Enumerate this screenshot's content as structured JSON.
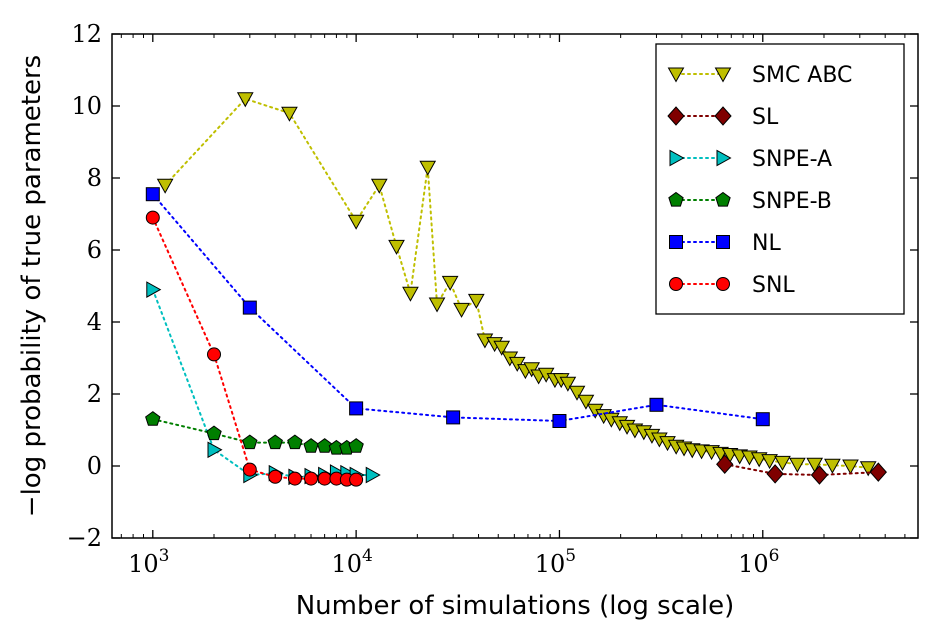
{
  "chart_data": {
    "type": "line",
    "title": "",
    "xlabel": "Number of simulations (log scale)",
    "ylabel": "−log probability of true parameters",
    "xscale": "log",
    "xlim": [
      630,
      5800000
    ],
    "ylim": [
      -2,
      12
    ],
    "yticks": [
      -2,
      0,
      2,
      4,
      6,
      8,
      10,
      12
    ],
    "ytick_labels": [
      "−2",
      "0",
      "2",
      "4",
      "6",
      "8",
      "10",
      "12"
    ],
    "xticks": [
      {
        "value": 1000,
        "base": "10",
        "exp": "3"
      },
      {
        "value": 10000,
        "base": "10",
        "exp": "4"
      },
      {
        "value": 100000,
        "base": "10",
        "exp": "5"
      },
      {
        "value": 1000000,
        "base": "10",
        "exp": "6"
      }
    ],
    "grid": false,
    "legend_position": "top-right",
    "series": [
      {
        "name": "SMC ABC",
        "color": "#bfbf00",
        "marker": "triangle-down",
        "x": [
          1150,
          2850,
          4700,
          10000,
          13000,
          15800,
          18500,
          22500,
          25000,
          29000,
          33000,
          39000,
          43000,
          48000,
          52000,
          57000,
          62000,
          68000,
          73000,
          79000,
          86000,
          95000,
          102000,
          110000,
          122000,
          135000,
          150000,
          165000,
          180000,
          198000,
          215000,
          235000,
          260000,
          285000,
          310000,
          340000,
          375000,
          410000,
          450000,
          500000,
          560000,
          620000,
          690000,
          770000,
          860000,
          960000,
          1080000,
          1250000,
          1480000,
          1800000,
          2200000,
          2700000,
          3300000
        ],
        "y": [
          7.8,
          10.2,
          9.8,
          6.8,
          7.8,
          6.1,
          4.8,
          8.3,
          4.5,
          5.1,
          4.35,
          4.6,
          3.5,
          3.4,
          3.3,
          3.0,
          2.85,
          2.65,
          2.7,
          2.5,
          2.55,
          2.4,
          2.4,
          2.3,
          2.05,
          1.8,
          1.55,
          1.4,
          1.3,
          1.2,
          1.1,
          1.0,
          0.95,
          0.85,
          0.75,
          0.65,
          0.55,
          0.5,
          0.45,
          0.42,
          0.4,
          0.35,
          0.32,
          0.28,
          0.25,
          0.2,
          0.15,
          0.1,
          0.05,
          0.05,
          0.02,
          0.0,
          -0.05
        ]
      },
      {
        "name": "SL",
        "color": "#7f0000",
        "marker": "diamond",
        "x": [
          650000,
          1150000,
          1900000,
          3700000
        ],
        "y": [
          0.05,
          -0.22,
          -0.25,
          -0.17
        ]
      },
      {
        "name": "SNPE-A",
        "color": "#00bfbf",
        "marker": "triangle-right",
        "x": [
          1000,
          2000,
          3000,
          4000,
          5000,
          6000,
          7000,
          8000,
          9000,
          10000,
          12000
        ],
        "y": [
          4.9,
          0.45,
          -0.25,
          -0.2,
          -0.3,
          -0.28,
          -0.25,
          -0.18,
          -0.2,
          -0.25,
          -0.25
        ]
      },
      {
        "name": "SNPE-B",
        "color": "#007f00",
        "marker": "pentagon",
        "x": [
          1000,
          2000,
          3000,
          4000,
          5000,
          6000,
          7000,
          8000,
          9000,
          10000
        ],
        "y": [
          1.3,
          0.9,
          0.65,
          0.65,
          0.65,
          0.55,
          0.55,
          0.5,
          0.5,
          0.55
        ]
      },
      {
        "name": "NL",
        "color": "#0000ff",
        "marker": "square",
        "x": [
          1000,
          3000,
          10000,
          30000,
          100000,
          300000,
          1000000
        ],
        "y": [
          7.55,
          4.4,
          1.6,
          1.35,
          1.25,
          1.7,
          1.3
        ]
      },
      {
        "name": "SNL",
        "color": "#ff0000",
        "marker": "circle",
        "x": [
          1000,
          2000,
          3000,
          4000,
          5000,
          6000,
          7000,
          8000,
          9000,
          10000
        ],
        "y": [
          6.9,
          3.1,
          -0.1,
          -0.3,
          -0.35,
          -0.35,
          -0.35,
          -0.35,
          -0.38,
          -0.38
        ]
      }
    ]
  }
}
